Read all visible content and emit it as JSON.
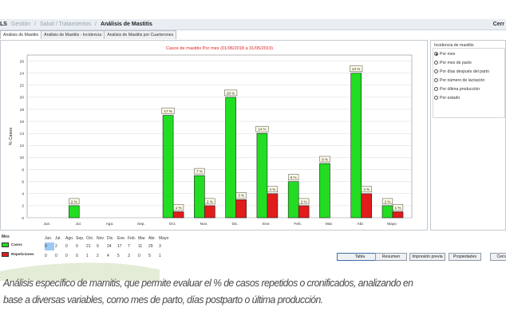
{
  "header": {
    "app": "LS",
    "crumbs": [
      "Gestión",
      "Salud / Tratamientos"
    ],
    "current": "Análisis de Mastitis",
    "right": "Cerr"
  },
  "tabs": [
    {
      "label": "Análisis de Mastitis",
      "active": true
    },
    {
      "label": "Análisis de Mastitis - Incidencia",
      "active": false
    },
    {
      "label": "Análisis de Mastitis por Cuarterones",
      "active": false
    }
  ],
  "options": {
    "group_title": "Incidencia de mastitis",
    "items": [
      {
        "label": "Por mes",
        "selected": true
      },
      {
        "label": "Por mes de parto",
        "selected": false
      },
      {
        "label": "Por días después del parto",
        "selected": false
      },
      {
        "label": "Por número de lactación",
        "selected": false
      },
      {
        "label": "Por última producción",
        "selected": false
      },
      {
        "label": "Por estado",
        "selected": false
      }
    ]
  },
  "chart_data": {
    "type": "bar",
    "title": "Casos de mastitis Por mes (01/06/2018 a 31/05/2019)",
    "ylabel": "% Casos",
    "xlabel": "",
    "ylim": [
      0,
      27
    ],
    "yticks": [
      0,
      2,
      4,
      6,
      8,
      10,
      12,
      14,
      16,
      18,
      20,
      22,
      24,
      26
    ],
    "grid": true,
    "categories": [
      "Jun.",
      "Jul.",
      "Ago.",
      "Sep.",
      "Oct.",
      "Nov.",
      "Dic.",
      "Ene.",
      "Feb.",
      "Mar.",
      "Abr.",
      "Mayo"
    ],
    "series": [
      {
        "name": "Casos",
        "color": "#22dd22",
        "values": [
          0,
          2,
          0,
          0,
          17,
          7,
          20,
          14,
          6,
          9,
          24,
          2
        ],
        "labels": [
          "",
          "2 %",
          "",
          "",
          "17 %",
          "7 %",
          "20 %",
          "14 %",
          "6 %",
          "9 %",
          "24 %",
          "2 %"
        ]
      },
      {
        "name": "Repeticiones",
        "color": "#e21b1b",
        "values": [
          0,
          0,
          0,
          0,
          1,
          2,
          3,
          4,
          2,
          0,
          4,
          1
        ],
        "labels": [
          "",
          "",
          "",
          "",
          "1 %",
          "2 %",
          "3 %",
          "4 %",
          "2 %",
          "",
          "4 %",
          "1 %"
        ]
      }
    ]
  },
  "data_table": {
    "legend_title": "Mes",
    "headers": [
      "Jun.",
      "Jul.",
      "Ago.",
      "Sep.",
      "Oct.",
      "Nov.",
      "Dic.",
      "Ene.",
      "Feb.",
      "Mar.",
      "Abr.",
      "Mayo"
    ],
    "rows": [
      {
        "name": "Casos",
        "color": "#22dd22",
        "values": [
          "0",
          "2",
          "0",
          "0",
          "21",
          "9",
          "24",
          "17",
          "7",
          "11",
          "29",
          "3"
        ]
      },
      {
        "name": "Repeticiones",
        "color": "#e21b1b",
        "values": [
          "0",
          "0",
          "0",
          "0",
          "1",
          "2",
          "4",
          "5",
          "3",
          "0",
          "5",
          "1"
        ]
      }
    ]
  },
  "buttons": [
    "Tabla",
    "Resumen",
    "Impresión previa",
    "Propiedades",
    "Cerra"
  ],
  "caption": [
    "Análisis específico de mamitis, que permite evaluar el % de casos repetidos o cronificados, analizando en",
    "base a diversas variables, como mes de parto, días postparto o última producción."
  ]
}
